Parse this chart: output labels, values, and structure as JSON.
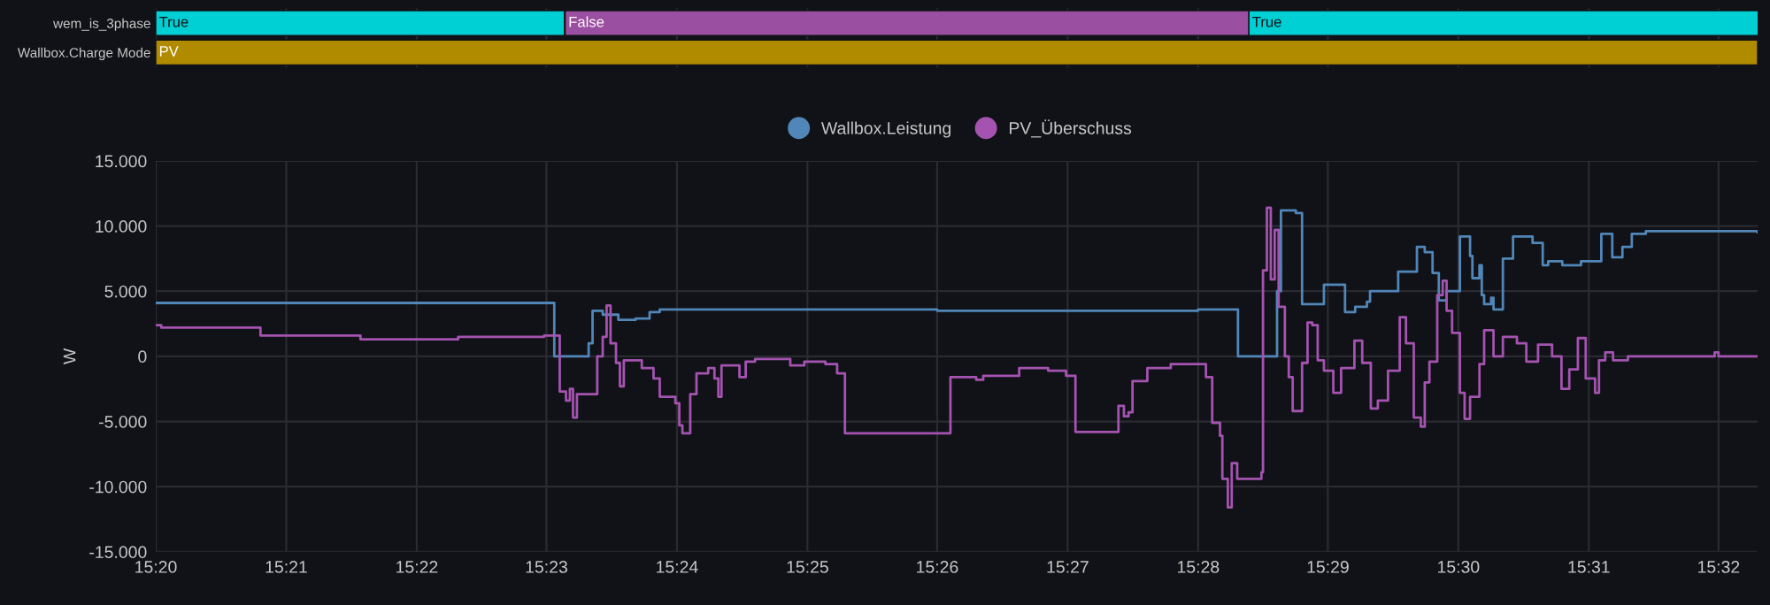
{
  "chart_data": [
    {
      "type": "bar",
      "orientation": "horizontal",
      "categories": [
        "wem_is_3phase",
        "Wallbox.Charge Mode"
      ],
      "series": [
        {
          "base": [
            15.3333,
            15.3333
          ],
          "values": [
            0.0523,
            0.205
          ],
          "colors": [
            "#00cfd4",
            "#b08b00"
          ],
          "value_labels": [
            "True",
            "PV"
          ]
        },
        {
          "base": [
            15.3857,
            null
          ],
          "values": [
            0.0875,
            null
          ],
          "colors": [
            "#9b4fa0",
            "#b08b00"
          ],
          "value_labels": [
            "False",
            null
          ]
        },
        {
          "base": [
            15.4732,
            null
          ],
          "values": [
            0.0652,
            null
          ],
          "colors": [
            "#00cfd4",
            "#b08b00"
          ],
          "value_labels": [
            "True",
            null
          ]
        }
      ],
      "xlim": [
        15.3333,
        15.5383
      ],
      "xticks": [
        {
          "value": 15.3333,
          "label": null
        },
        {
          "value": 15.35,
          "label": null
        },
        {
          "value": 15.3667,
          "label": null
        },
        {
          "value": 15.3833,
          "label": null
        },
        {
          "value": 15.4,
          "label": null
        },
        {
          "value": 15.4167,
          "label": null
        },
        {
          "value": 15.4333,
          "label": null
        },
        {
          "value": 15.45,
          "label": null
        },
        {
          "value": 15.4667,
          "label": null
        },
        {
          "value": 15.4833,
          "label": null
        },
        {
          "value": 15.5,
          "label": null
        },
        {
          "value": 15.5167,
          "label": null
        },
        {
          "value": 15.5333,
          "label": null
        }
      ],
      "tick_labels": "y",
      "grid": "x"
    },
    {
      "type": "step",
      "ylabel": "W",
      "legend": "top",
      "grid": true,
      "marker": "none",
      "line_style": "solid",
      "xlim": [
        15.3333,
        15.5383
      ],
      "ylim": [
        -15000,
        15000
      ],
      "xticks": [
        {
          "value": 15.3333,
          "label": "15:20"
        },
        {
          "value": 15.35,
          "label": "15:21"
        },
        {
          "value": 15.3667,
          "label": "15:22"
        },
        {
          "value": 15.3833,
          "label": "15:23"
        },
        {
          "value": 15.4,
          "label": "15:24"
        },
        {
          "value": 15.4167,
          "label": "15:25"
        },
        {
          "value": 15.4333,
          "label": "15:26"
        },
        {
          "value": 15.45,
          "label": "15:27"
        },
        {
          "value": 15.4667,
          "label": "15:28"
        },
        {
          "value": 15.4833,
          "label": "15:29"
        },
        {
          "value": 15.5,
          "label": "15:30"
        },
        {
          "value": 15.5167,
          "label": "15:31"
        },
        {
          "value": 15.5333,
          "label": "15:32"
        }
      ],
      "yticks": [
        {
          "value": -15000,
          "label": "-15.000"
        },
        {
          "value": -10000,
          "label": "-10.000"
        },
        {
          "value": -5000,
          "label": "-5.000"
        },
        0,
        {
          "value": 5000,
          "label": "5.000"
        },
        {
          "value": 10000,
          "label": "10.000"
        },
        {
          "value": 15000,
          "label": "15.000"
        }
      ],
      "series": [
        {
          "name": "Wallbox.Leistung",
          "color": "#5186b8",
          "x": [
            15.3333,
            15.3843,
            15.3887,
            15.3892,
            15.3905,
            15.3925,
            15.3947,
            15.3965,
            15.3978,
            15.4333,
            15.4667,
            15.4718,
            15.4768,
            15.4773,
            15.4792,
            15.48,
            15.4828,
            15.4855,
            15.4868,
            15.4883,
            15.4887,
            15.4923,
            15.4947,
            15.4957,
            15.4967,
            15.4975,
            15.4985,
            15.5002,
            15.5015,
            15.5018,
            15.5027,
            15.503,
            15.5033,
            15.5042,
            15.5045,
            15.5057,
            15.507,
            15.5095,
            15.5108,
            15.5115,
            15.5133,
            15.5157,
            15.5183,
            15.5197,
            15.521,
            15.5222,
            15.524,
            15.5383
          ],
          "values": [
            4100,
            0,
            1000,
            3500,
            3200,
            2800,
            2900,
            3400,
            3600,
            3500,
            3600,
            0,
            5000,
            11200,
            11000,
            4000,
            5500,
            3400,
            3800,
            4200,
            5000,
            6500,
            8400,
            8000,
            6400,
            4300,
            5000,
            9200,
            7700,
            6000,
            7000,
            4700,
            4000,
            4500,
            3600,
            7500,
            9200,
            8700,
            7000,
            7300,
            7000,
            7300,
            9400,
            7600,
            8400,
            9400,
            9600,
            9500
          ]
        },
        {
          "name": "PV_Überschuss",
          "color": "#a453b0",
          "x": [
            15.3333,
            15.334,
            15.3467,
            15.3595,
            15.372,
            15.383,
            15.385,
            15.3858,
            15.3863,
            15.3867,
            15.3872,
            15.3895,
            15.3898,
            15.3905,
            15.391,
            15.3915,
            15.3922,
            15.3927,
            15.3932,
            15.3943,
            15.3955,
            15.397,
            15.3978,
            15.3998,
            15.4003,
            15.4007,
            15.4017,
            15.4025,
            15.404,
            15.4048,
            15.4053,
            15.4057,
            15.4077,
            15.408,
            15.4088,
            15.41,
            15.4145,
            15.4163,
            15.419,
            15.4205,
            15.4215,
            15.4345,
            15.435,
            15.4383,
            15.4392,
            15.4438,
            15.4475,
            15.4498,
            15.451,
            15.4562,
            15.4565,
            15.4572,
            15.4578,
            15.4583,
            15.4602,
            15.4632,
            15.4677,
            15.4685,
            15.4695,
            15.4698,
            15.4705,
            15.471,
            15.4717,
            15.4735,
            15.4748,
            15.475,
            15.4755,
            15.476,
            15.4765,
            15.477,
            15.4778,
            15.4783,
            15.4788,
            15.48,
            15.4807,
            15.4813,
            15.482,
            15.4828,
            15.484,
            15.485,
            15.4867,
            15.4877,
            15.4888,
            15.4897,
            15.491,
            15.4925,
            15.4933,
            15.4943,
            15.4952,
            15.4957,
            15.4963,
            15.4973,
            15.498,
            15.4985,
            15.4992,
            15.5002,
            15.5008,
            15.5015,
            15.5027,
            15.5033,
            15.5045,
            15.5057,
            15.5075,
            15.5087,
            15.5102,
            15.512,
            15.5132,
            15.5142,
            15.5153,
            15.5163,
            15.5175,
            15.518,
            15.5188,
            15.5198,
            15.5217,
            15.5328,
            15.5333,
            15.5383
          ],
          "values": [
            2400,
            2200,
            1600,
            1300,
            1500,
            1600,
            -2700,
            -3400,
            -2500,
            -4700,
            -2900,
            -2900,
            0,
            1500,
            3900,
            1000,
            -500,
            -2300,
            -300,
            -300,
            -900,
            -1700,
            -3100,
            -3600,
            -5300,
            -5900,
            -2900,
            -1300,
            -900,
            -1700,
            -3100,
            -700,
            -700,
            -1600,
            -400,
            -200,
            -700,
            -400,
            -600,
            -1300,
            -5900,
            -5900,
            -1600,
            -1800,
            -1500,
            -900,
            -1100,
            -1500,
            -5800,
            -5800,
            -3800,
            -4600,
            -4300,
            -1900,
            -900,
            -600,
            -1600,
            -5100,
            -6100,
            -9400,
            -11600,
            -8200,
            -9400,
            -9400,
            -8900,
            6600,
            11400,
            5900,
            9700,
            3800,
            0,
            -1600,
            -4200,
            -500,
            2600,
            2400,
            -300,
            -1100,
            -2800,
            -900,
            1200,
            -500,
            -4000,
            -3400,
            -1100,
            3000,
            1000,
            -4700,
            -5400,
            -2000,
            -400,
            4700,
            5800,
            3500,
            1800,
            -2800,
            -4800,
            -3100,
            -600,
            2000,
            0,
            1500,
            1000,
            -400,
            900,
            0,
            -2500,
            -1000,
            1400,
            -1700,
            -2800,
            -300,
            300,
            -300,
            0,
            300,
            0,
            0
          ]
        }
      ]
    }
  ]
}
